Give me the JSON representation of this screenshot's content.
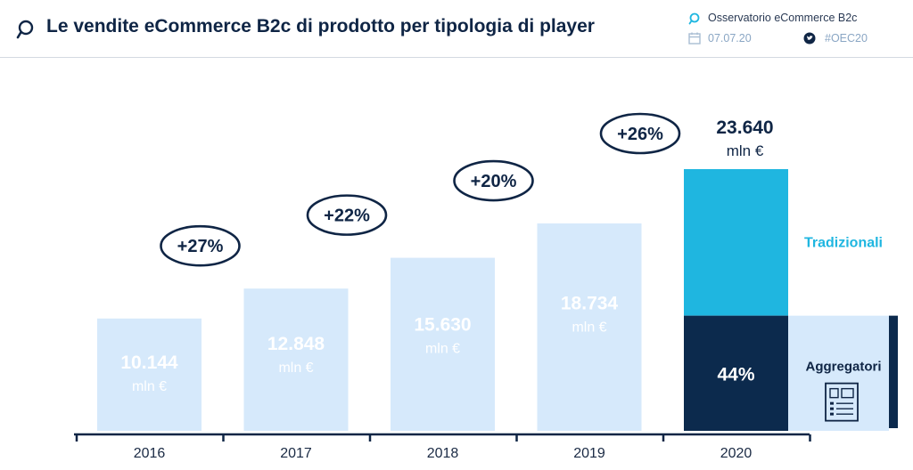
{
  "header": {
    "title": "Le vendite eCommerce B2c di prodotto per tipologia di player",
    "source": "Osservatorio eCommerce B2c",
    "date": "07.07.20",
    "hashtag": "#OEC20",
    "icons": [
      "search-icon",
      "calendar-icon",
      "twitter-icon"
    ]
  },
  "chart_data": {
    "type": "bar",
    "categories": [
      "2016",
      "2017",
      "2018",
      "2019",
      "2020"
    ],
    "values": [
      10144,
      12848,
      15630,
      18734,
      23640
    ],
    "value_labels": [
      "10.144",
      "12.848",
      "15.630",
      "18.734",
      "23.640"
    ],
    "unit_label": "mln €",
    "growth_labels": [
      "+27%",
      "+22%",
      "+20%",
      "+26%"
    ],
    "stack_2020": {
      "series": [
        {
          "name": "Aggregatori",
          "share": 0.44,
          "label": "44%",
          "color": "#0c2a4d"
        },
        {
          "name": "Tradizionali",
          "share": 0.56,
          "label": "",
          "color": "#1fb6e0"
        }
      ]
    },
    "ylim": [
      0,
      25000
    ],
    "xlabel": "",
    "ylabel": "",
    "colors": {
      "bar": "#d6e9fb",
      "bar_text": "#ffffff",
      "axis": "#0f2545",
      "ellipse": "#0f2545",
      "tradizionali_label": "#1fb6e0",
      "aggregatori_label": "#0f2545"
    }
  }
}
